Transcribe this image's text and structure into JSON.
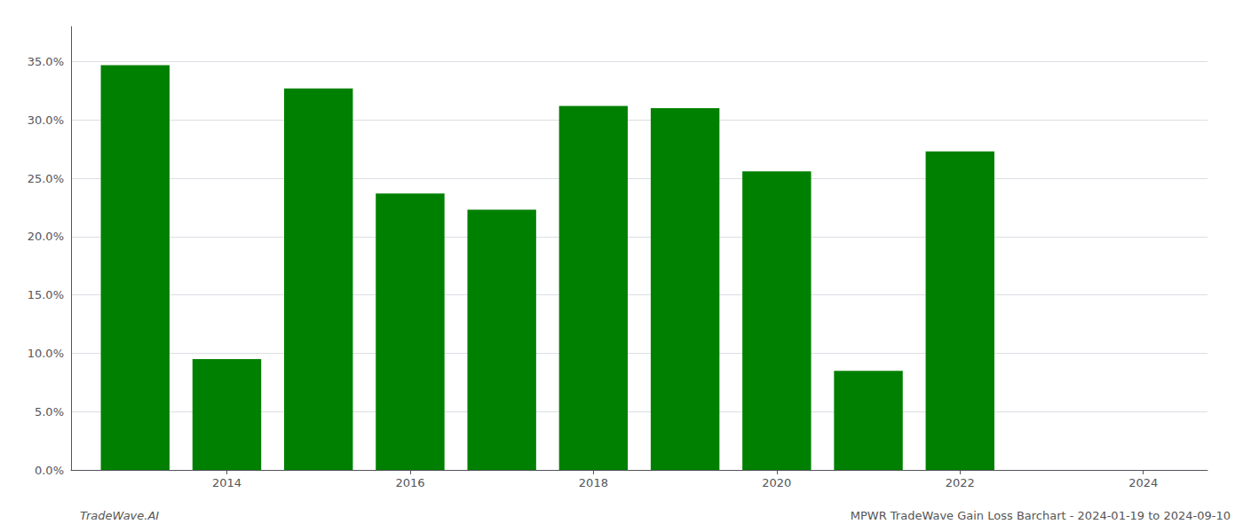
{
  "chart_data": {
    "type": "bar",
    "x": [
      2013,
      2014,
      2015,
      2016,
      2017,
      2018,
      2019,
      2020,
      2021,
      2022,
      2023
    ],
    "values": [
      0.347,
      0.095,
      0.327,
      0.237,
      0.223,
      0.312,
      0.31,
      0.256,
      0.085,
      0.273,
      0.0
    ],
    "color": "#008000",
    "xlim": [
      2012.3,
      2024.7
    ],
    "xticks": [
      2014,
      2016,
      2018,
      2020,
      2022,
      2024
    ],
    "ylim": [
      0,
      0.38
    ],
    "yticks": [
      {
        "value": 0.0,
        "label": "0.0%"
      },
      {
        "value": 0.05,
        "label": "5.0%"
      },
      {
        "value": 0.1,
        "label": "10.0%"
      },
      {
        "value": 0.15,
        "label": "15.0%"
      },
      {
        "value": 0.2,
        "label": "20.0%"
      },
      {
        "value": 0.25,
        "label": "25.0%"
      },
      {
        "value": 0.3,
        "label": "30.0%"
      },
      {
        "value": 0.35,
        "label": "35.0%"
      }
    ],
    "grid": true,
    "annotations": [
      "TradeWave.AI",
      "MPWR TradeWave Gain Loss Barchart - 2024-01-19 to 2024-09-10"
    ]
  }
}
